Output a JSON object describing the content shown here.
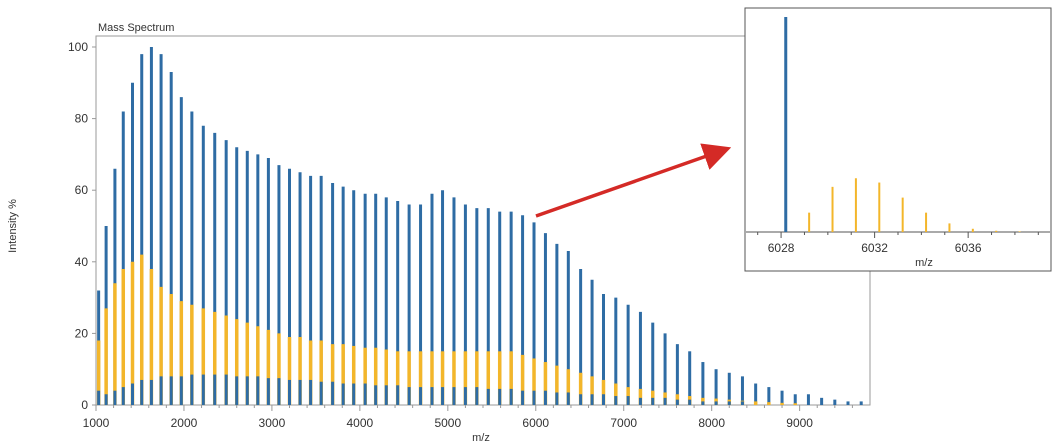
{
  "chart_data": [
    {
      "type": "bar",
      "title": "Mass Spectrum",
      "xlabel": "m/z",
      "ylabel": "Intensity %",
      "xlim": [
        1000,
        9800
      ],
      "ylim": [
        0,
        100
      ],
      "xticks": [
        1000,
        2000,
        3000,
        4000,
        5000,
        6000,
        7000,
        8000,
        9000
      ],
      "yticks": [
        0,
        20,
        40,
        60,
        80,
        100
      ],
      "grid": false,
      "legend": "none",
      "colors": {
        "blue_series": "#2e6ca4",
        "orange_series": "#f3b62a",
        "frame": "#999999"
      },
      "series": [
        {
          "color": "#2e6ca4",
          "x": [
            1030,
            1115,
            1215,
            1310,
            1415,
            1520,
            1630,
            1740,
            1855,
            1970,
            2090,
            2220,
            2350,
            2480,
            2600,
            2720,
            2840,
            2960,
            3080,
            3200,
            3320,
            3440,
            3560,
            3690,
            3810,
            3930,
            4060,
            4180,
            4300,
            4430,
            4560,
            4690,
            4820,
            4940,
            5070,
            5200,
            5330,
            5460,
            5590,
            5720,
            5850,
            5980,
            6110,
            6240,
            6370,
            6510,
            6640,
            6770,
            6910,
            7050,
            7190,
            7330,
            7470,
            7610,
            7750,
            7900,
            8050,
            8200,
            8350,
            8500,
            8650,
            8800,
            8950,
            9100,
            9250,
            9400,
            9550,
            9700
          ],
          "values": [
            32,
            50,
            66,
            82,
            90,
            98,
            100,
            98,
            93,
            86,
            82,
            78,
            76,
            74,
            72,
            71,
            70,
            69,
            67,
            66,
            65,
            64,
            64,
            62,
            61,
            60,
            59,
            59,
            58,
            57,
            56,
            56,
            59,
            60,
            58,
            56,
            55,
            55,
            54,
            54,
            53,
            51,
            48,
            45,
            43,
            38,
            35,
            31,
            30,
            28,
            26,
            23,
            20,
            17,
            15,
            12,
            10,
            9,
            8,
            6,
            5,
            4,
            3,
            3,
            2,
            1.5,
            1,
            1
          ]
        },
        {
          "color": "#f3b62a",
          "x": [
            1030,
            1115,
            1215,
            1310,
            1415,
            1520,
            1630,
            1740,
            1855,
            1970,
            2090,
            2220,
            2350,
            2480,
            2600,
            2720,
            2840,
            2960,
            3080,
            3200,
            3320,
            3440,
            3560,
            3690,
            3810,
            3930,
            4060,
            4180,
            4300,
            4430,
            4560,
            4690,
            4820,
            4940,
            5070,
            5200,
            5330,
            5460,
            5590,
            5720,
            5850,
            5980,
            6110,
            6240,
            6370,
            6510,
            6640,
            6770,
            6910,
            7050,
            7190,
            7330,
            7470,
            7610,
            7750,
            7900,
            8050,
            8200,
            8350,
            8500,
            8650,
            8800,
            8950
          ],
          "values": [
            18,
            27,
            34,
            38,
            40,
            42,
            38,
            33,
            31,
            29,
            28,
            27,
            26,
            25,
            24,
            23,
            22,
            21,
            20,
            19,
            19,
            18,
            18,
            17,
            17,
            16.5,
            16,
            16,
            15.5,
            15,
            15,
            15,
            15,
            15,
            15,
            15,
            15,
            15,
            15,
            15,
            14,
            13,
            12,
            11,
            10,
            9,
            8,
            7,
            6,
            5,
            4.5,
            4,
            3.5,
            3,
            2.5,
            2,
            1.8,
            1.5,
            1.2,
            1,
            0.8,
            0.6,
            0.5
          ]
        },
        {
          "color": "#2e6ca4",
          "x": [
            1030,
            1115,
            1215,
            1310,
            1415,
            1520,
            1630,
            1740,
            1855,
            1970,
            2090,
            2220,
            2350,
            2480,
            2600,
            2720,
            2840,
            2960,
            3080,
            3200,
            3320,
            3440,
            3560,
            3690,
            3810,
            3930,
            4060,
            4180,
            4300,
            4430,
            4560,
            4690,
            4820,
            4940,
            5070,
            5200,
            5330,
            5460,
            5590,
            5720,
            5850,
            5980,
            6110,
            6240,
            6370,
            6510,
            6640,
            6770,
            6910,
            7050,
            7190,
            7330,
            7470,
            7610,
            7750,
            7900,
            8050,
            8200,
            8350
          ],
          "values": [
            4,
            3,
            4,
            5,
            6,
            7,
            7,
            8,
            8,
            8,
            8.5,
            8.5,
            8.5,
            8.5,
            8,
            8,
            8,
            7.5,
            7.5,
            7,
            7,
            7,
            6.5,
            6.5,
            6,
            6,
            6,
            5.5,
            5.5,
            5.5,
            5,
            5,
            5,
            5,
            5,
            5,
            5,
            4.5,
            4.5,
            4.5,
            4,
            4,
            4,
            3.5,
            3.5,
            3,
            3,
            3,
            2.5,
            2.5,
            2,
            2,
            2,
            1.5,
            1.5,
            1,
            1,
            1,
            1
          ]
        }
      ]
    },
    {
      "type": "bar",
      "xlabel": "m/z",
      "xlim": [
        6026.5,
        6039.5
      ],
      "ylim": [
        0,
        100
      ],
      "xticks": [
        6028,
        6032,
        6036
      ],
      "grid": false,
      "legend": "none",
      "series": [
        {
          "color": "#2e6ca4",
          "x": [
            6028.2
          ],
          "values": [
            100
          ]
        },
        {
          "color": "#f3b62a",
          "x": [
            6029.2,
            6030.2,
            6031.2,
            6032.2,
            6033.2,
            6034.2,
            6035.2,
            6036.2,
            6037.2,
            6038.2
          ],
          "values": [
            9,
            21,
            25,
            23,
            16,
            9,
            4,
            1.5,
            0.6,
            0.3
          ]
        }
      ]
    }
  ]
}
